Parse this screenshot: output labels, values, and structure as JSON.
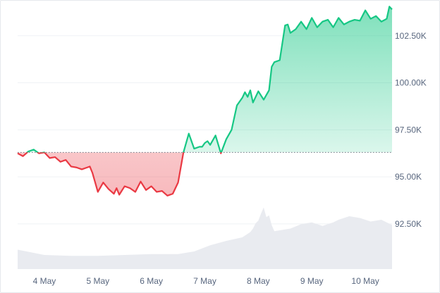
{
  "chart_data": {
    "type": "area",
    "baseline": 96300,
    "ylim": [
      90100,
      104400
    ],
    "y_ticks": [
      {
        "value": 92500,
        "label": "92.50K"
      },
      {
        "value": 95000,
        "label": "95.00K"
      },
      {
        "value": 97500,
        "label": "97.50K"
      },
      {
        "value": 100000,
        "label": "100.00K"
      },
      {
        "value": 102500,
        "label": "102.50K"
      }
    ],
    "x_ticks": [
      {
        "value": 0.5,
        "label": "4 May"
      },
      {
        "value": 1.5,
        "label": "5 May"
      },
      {
        "value": 2.5,
        "label": "6 May"
      },
      {
        "value": 3.5,
        "label": "7 May"
      },
      {
        "value": 4.5,
        "label": "8 May"
      },
      {
        "value": 5.5,
        "label": "9 May"
      },
      {
        "value": 6.5,
        "label": "10 May"
      }
    ],
    "x_range": [
      0,
      7.0
    ],
    "price": {
      "x": [
        0.0,
        0.1,
        0.2,
        0.3,
        0.4,
        0.5,
        0.6,
        0.7,
        0.8,
        0.9,
        1.0,
        1.1,
        1.2,
        1.3,
        1.35,
        1.4,
        1.5,
        1.6,
        1.7,
        1.8,
        1.85,
        1.9,
        2.0,
        2.1,
        2.2,
        2.3,
        2.4,
        2.5,
        2.6,
        2.7,
        2.8,
        2.9,
        3.0,
        3.1,
        3.2,
        3.3,
        3.4,
        3.45,
        3.5,
        3.55,
        3.6,
        3.7,
        3.8,
        3.9,
        4.0,
        4.1,
        4.2,
        4.25,
        4.3,
        4.35,
        4.4,
        4.5,
        4.6,
        4.7,
        4.75,
        4.8,
        4.9,
        5.0,
        5.05,
        5.1,
        5.2,
        5.3,
        5.4,
        5.5,
        5.6,
        5.7,
        5.8,
        5.9,
        6.0,
        6.1,
        6.2,
        6.3,
        6.4,
        6.5,
        6.6,
        6.7,
        6.8,
        6.9,
        6.95,
        7.0
      ],
      "y": [
        96250,
        96100,
        96350,
        96450,
        96250,
        96300,
        96000,
        96050,
        95800,
        95900,
        95550,
        95500,
        95400,
        95500,
        95550,
        95200,
        94200,
        94700,
        94350,
        94100,
        94400,
        94050,
        94500,
        94400,
        94200,
        94750,
        94300,
        94500,
        94200,
        94250,
        94000,
        94100,
        94700,
        96300,
        97300,
        96500,
        96600,
        96600,
        96800,
        96900,
        96700,
        97200,
        96250,
        97000,
        97500,
        98800,
        99200,
        99500,
        99250,
        99600,
        98950,
        99550,
        99100,
        99600,
        100850,
        101100,
        101200,
        103050,
        103100,
        102650,
        102850,
        103250,
        102850,
        103450,
        102950,
        103250,
        103350,
        102950,
        103450,
        103100,
        103250,
        103350,
        103300,
        103850,
        103400,
        103550,
        103250,
        103400,
        104050,
        103900
      ]
    },
    "volume": {
      "x": [
        0.0,
        0.5,
        1.0,
        1.5,
        2.0,
        2.5,
        3.0,
        3.3,
        3.6,
        3.9,
        4.2,
        4.35,
        4.4,
        4.45,
        4.5,
        4.55,
        4.6,
        4.65,
        4.7,
        4.75,
        4.8,
        4.9,
        5.1,
        5.3,
        5.5,
        5.7,
        5.9,
        6.0,
        6.2,
        6.4,
        6.6,
        6.8,
        7.0
      ],
      "y": [
        2200,
        1600,
        1500,
        1500,
        1600,
        1700,
        1700,
        2000,
        2700,
        3200,
        3600,
        4200,
        4600,
        5200,
        5500,
        6300,
        7000,
        5900,
        6100,
        5000,
        4300,
        4400,
        4600,
        5100,
        5300,
        4900,
        5300,
        5600,
        6000,
        5800,
        5400,
        5600,
        5000
      ],
      "ymax": 12000
    },
    "colors": {
      "up": "#16c784",
      "down": "#ea3943",
      "grid": "#eff2f5",
      "baseline": "#6e7584",
      "volume": "#e9ebf0"
    },
    "grid": true
  }
}
